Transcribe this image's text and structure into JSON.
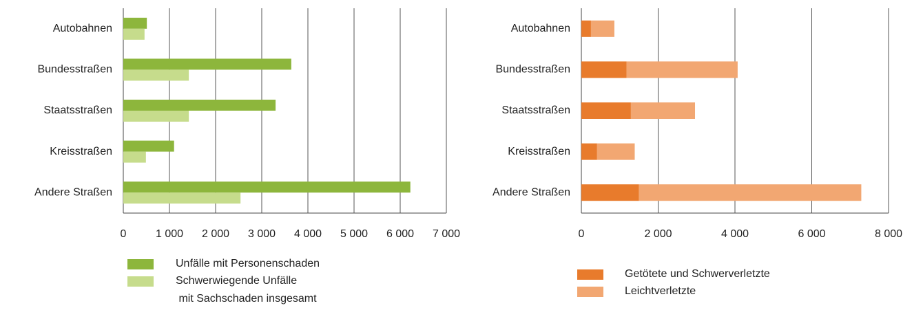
{
  "chart_data": [
    {
      "type": "bar",
      "orientation": "horizontal",
      "stacked": false,
      "categories": [
        "Autobahnen",
        "Bundesstraßen",
        "Staatsstraßen",
        "Kreisstraßen",
        "Andere Straßen"
      ],
      "series": [
        {
          "name": "Unfälle mit Personenschaden",
          "color": "#8db63c",
          "values": [
            510,
            3640,
            3300,
            1100,
            6220
          ]
        },
        {
          "name": "Schwerwiegende Unfälle\n mit Sachschaden insgesamt",
          "color": "#c6dc8c",
          "values": [
            460,
            1420,
            1420,
            490,
            2540
          ]
        }
      ],
      "xlim": [
        0,
        7000
      ],
      "xticks": [
        0,
        {
          "value": 1000,
          "label": "1 000"
        },
        {
          "value": 2000,
          "label": "2 000"
        },
        {
          "value": 3000,
          "label": "3 000"
        },
        {
          "value": 4000,
          "label": "4 000"
        },
        {
          "value": 5000,
          "label": "5 000"
        },
        {
          "value": 6000,
          "label": "6 000"
        },
        {
          "value": 7000,
          "label": "7 000"
        }
      ],
      "grid": true
    },
    {
      "type": "bar",
      "orientation": "horizontal",
      "stacked": true,
      "categories": [
        "Autobahnen",
        "Bundesstraßen",
        "Staatsstraßen",
        "Kreisstraßen",
        "Andere Straßen"
      ],
      "series": [
        {
          "name": "Getötete und Schwerverletzte",
          "color": "#e87b2c",
          "values": [
            250,
            1180,
            1290,
            410,
            1500
          ]
        },
        {
          "name": "Leichtverletzte",
          "color": "#f2a772",
          "values": [
            610,
            2890,
            1670,
            980,
            5790
          ]
        }
      ],
      "xlim": [
        0,
        8000
      ],
      "xticks": [
        0,
        {
          "value": 2000,
          "label": "2 000"
        },
        {
          "value": 4000,
          "label": "4 000"
        },
        {
          "value": 6000,
          "label": "6 000"
        },
        {
          "value": 8000,
          "label": "8 000"
        }
      ],
      "grid": true
    }
  ]
}
